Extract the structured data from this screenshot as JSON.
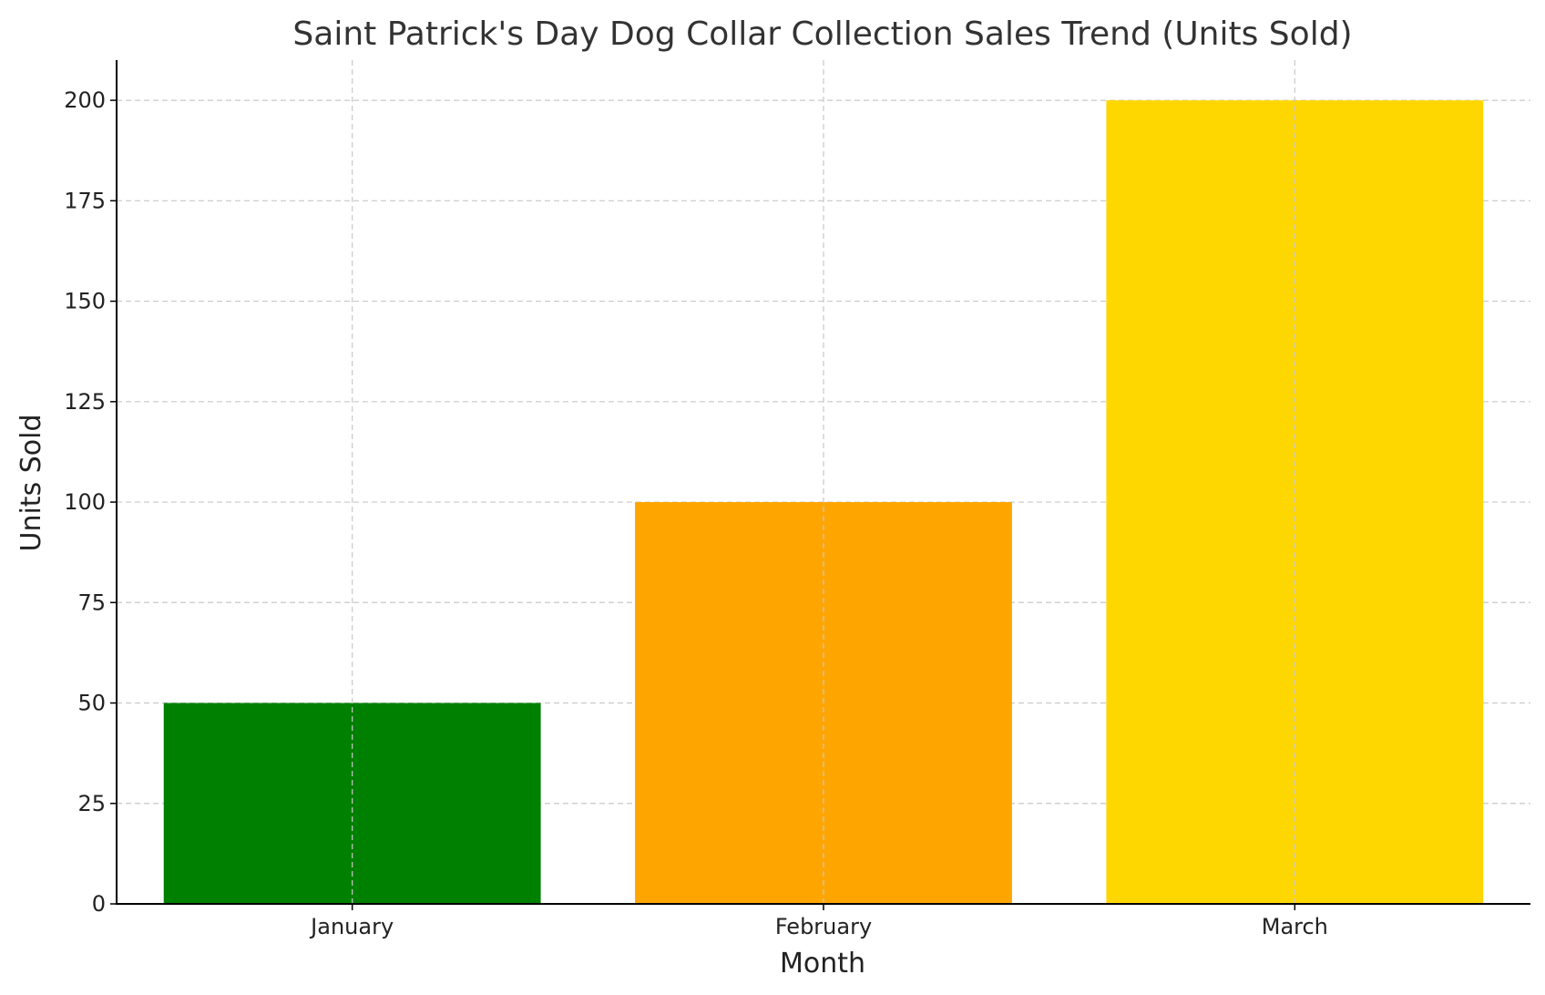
{
  "chart_data": {
    "type": "bar",
    "title": "Saint Patrick's Day Dog Collar Collection Sales Trend (Units Sold)",
    "xlabel": "Month",
    "ylabel": "Units Sold",
    "categories": [
      "January",
      "February",
      "March"
    ],
    "values": [
      50,
      100,
      200
    ],
    "colors": [
      "#008000",
      "#FFA500",
      "#FFD700"
    ],
    "ylim": [
      0,
      210
    ],
    "yticks": [
      0,
      25,
      50,
      75,
      100,
      125,
      150,
      175,
      200
    ],
    "grid": true,
    "legend": "none"
  }
}
